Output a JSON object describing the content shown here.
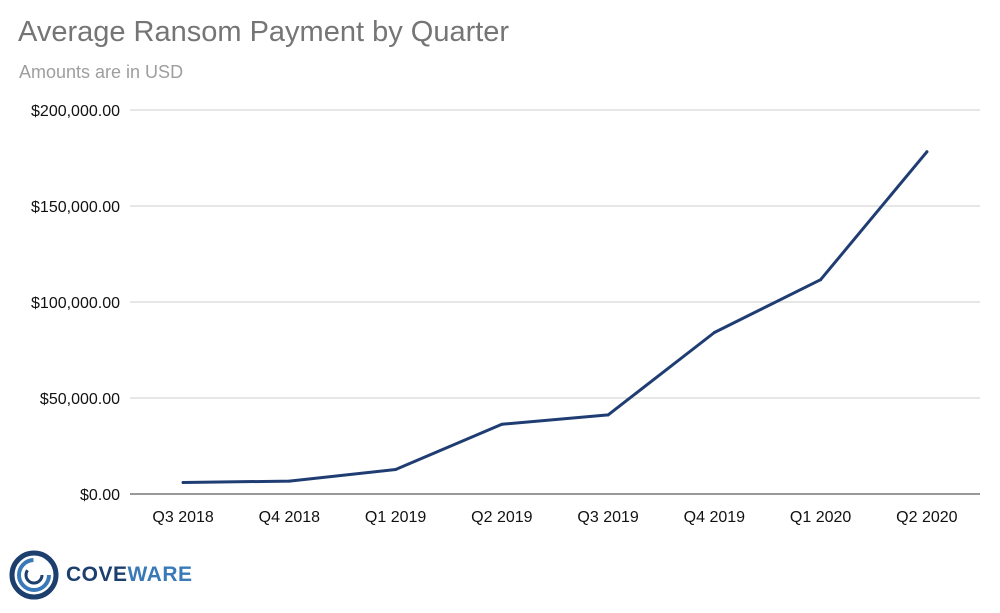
{
  "title": "Average Ransom Payment by Quarter",
  "subtitle": "Amounts are in USD",
  "logo": {
    "prefix": "COVE",
    "suffix": "WARE"
  },
  "chart_data": {
    "type": "line",
    "title": "Average Ransom Payment by Quarter",
    "subtitle": "Amounts are in USD",
    "categories": [
      "Q3 2018",
      "Q4 2018",
      "Q1 2019",
      "Q2 2019",
      "Q3 2019",
      "Q4 2019",
      "Q1 2020",
      "Q2 2020"
    ],
    "series": [
      {
        "values": [
          5973,
          6733,
          12762,
          36295,
          41198,
          84116,
          111605,
          178254
        ],
        "color": "#1f3d73"
      }
    ],
    "y_ticks": [
      "$0.00",
      "$50,000.00",
      "$100,000.00",
      "$150,000.00",
      "$200,000.00"
    ],
    "ylim": [
      0,
      200000
    ],
    "grid": true,
    "legend": "none"
  }
}
